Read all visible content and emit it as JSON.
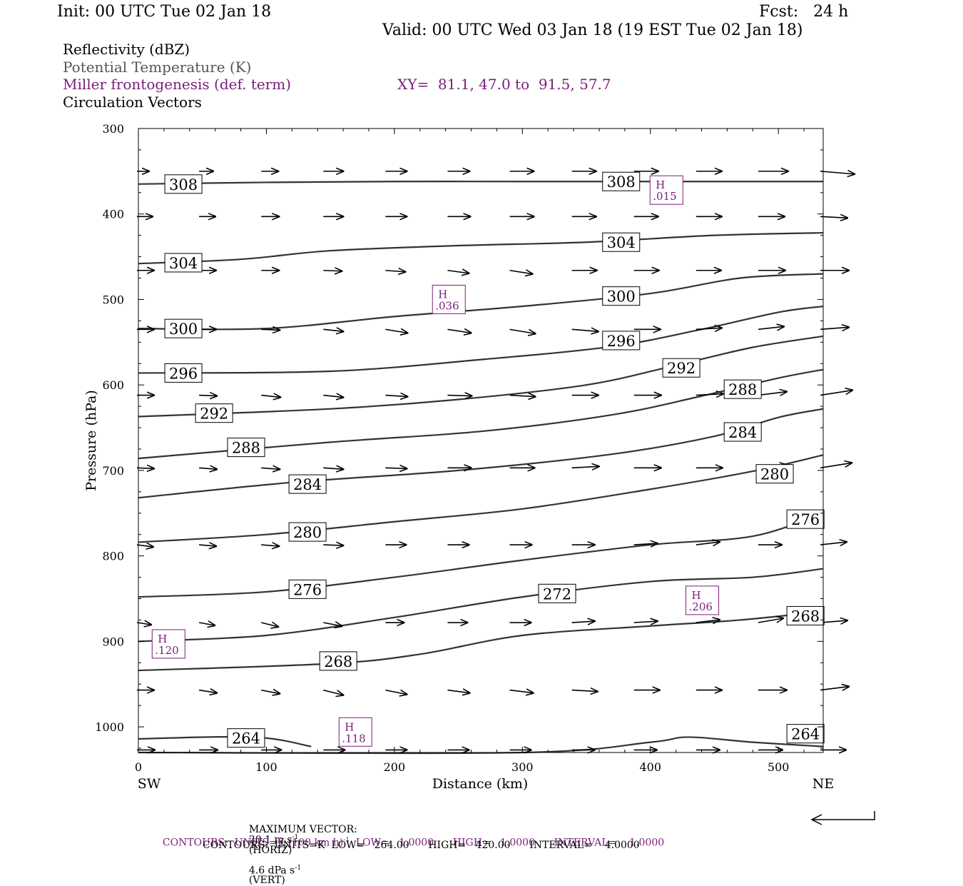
{
  "header": {
    "init": "Init: 00 UTC Tue 02 Jan 18",
    "fcst": "Fcst:   24 h",
    "valid": "Valid: 00 UTC Wed 03 Jan 18 (19 EST Tue 02 Jan 18)",
    "field1": "Reflectivity (dBZ)",
    "field2": "Potential Temperature (K)",
    "field3": "Miller frontogenesis (def. term)",
    "xy": "XY=  81.1, 47.0 to  91.5, 57.7",
    "field4": "Circulation Vectors"
  },
  "footer": {
    "max_vector_prefix": "MAXIMUM VECTOR:",
    "max_vector_horiz": "20.1 m s",
    "horiz_unit_sup": "-1",
    "horiz_suffix": "(HORIZ)",
    "max_vector_vert": "4.6 dPa s",
    "vert_unit_sup": "-1",
    "vert_suffix": "(VERT)",
    "contours1_a": "CONTOURS:  UNITS=K (100 km h)",
    "contours1_sup": "-1",
    "contours1_b": "  LOW=   1.0000      HIGH=   1.0000      INTERVAL=    1.0000",
    "contours2": "CONTOURS:  UNITS=K  LOW=   264.00      HIGH=   420.00      INTERVAL=    4.0000"
  },
  "colors": {
    "purple": "#7a1d7a",
    "line": "#333333"
  },
  "chart_data": {
    "type": "line",
    "title": "",
    "xlabel": "Distance (km)",
    "ylabel": "Pressure (hPa)",
    "x_end_labels": [
      "SW",
      "NE"
    ],
    "xlim": [
      0,
      535
    ],
    "ylim": [
      300,
      1030
    ],
    "y_inverted": true,
    "x_ticks": [
      0,
      100,
      200,
      300,
      400,
      500
    ],
    "y_ticks": [
      300,
      400,
      500,
      600,
      700,
      800,
      900,
      1000
    ],
    "isentropes": [
      {
        "theta": 308,
        "points": [
          [
            0,
            365
          ],
          [
            100,
            363
          ],
          [
            200,
            362
          ],
          [
            300,
            362
          ],
          [
            400,
            362
          ],
          [
            535,
            362
          ]
        ]
      },
      {
        "theta": 304,
        "points": [
          [
            0,
            458
          ],
          [
            80,
            453
          ],
          [
            150,
            443
          ],
          [
            250,
            437
          ],
          [
            350,
            433
          ],
          [
            450,
            425
          ],
          [
            535,
            422
          ]
        ]
      },
      {
        "theta": 300,
        "points": [
          [
            0,
            534
          ],
          [
            100,
            534
          ],
          [
            200,
            520
          ],
          [
            300,
            508
          ],
          [
            400,
            493
          ],
          [
            470,
            475
          ],
          [
            535,
            470
          ]
        ]
      },
      {
        "theta": 296,
        "points": [
          [
            0,
            586
          ],
          [
            150,
            584
          ],
          [
            270,
            570
          ],
          [
            370,
            555
          ],
          [
            440,
            535
          ],
          [
            500,
            515
          ],
          [
            535,
            508
          ]
        ]
      },
      {
        "theta": 292,
        "points": [
          [
            0,
            637
          ],
          [
            150,
            628
          ],
          [
            250,
            617
          ],
          [
            350,
            600
          ],
          [
            420,
            577
          ],
          [
            480,
            556
          ],
          [
            535,
            543
          ]
        ]
      },
      {
        "theta": 288,
        "points": [
          [
            0,
            686
          ],
          [
            150,
            667
          ],
          [
            270,
            654
          ],
          [
            370,
            635
          ],
          [
            440,
            613
          ],
          [
            500,
            592
          ],
          [
            535,
            582
          ]
        ]
      },
      {
        "theta": 284,
        "points": [
          [
            0,
            732
          ],
          [
            120,
            714
          ],
          [
            250,
            700
          ],
          [
            370,
            681
          ],
          [
            450,
            660
          ],
          [
            500,
            638
          ],
          [
            535,
            628
          ]
        ]
      },
      {
        "theta": 280,
        "points": [
          [
            0,
            784
          ],
          [
            100,
            775
          ],
          [
            200,
            760
          ],
          [
            300,
            745
          ],
          [
            400,
            722
          ],
          [
            480,
            701
          ],
          [
            535,
            682
          ]
        ]
      },
      {
        "theta": 276,
        "points": [
          [
            0,
            848
          ],
          [
            100,
            842
          ],
          [
            200,
            825
          ],
          [
            300,
            805
          ],
          [
            400,
            787
          ],
          [
            480,
            777
          ],
          [
            535,
            750
          ]
        ]
      },
      {
        "theta": 272,
        "points": [
          [
            0,
            900
          ],
          [
            100,
            893
          ],
          [
            200,
            872
          ],
          [
            300,
            848
          ],
          [
            400,
            830
          ],
          [
            480,
            825
          ],
          [
            535,
            815
          ]
        ]
      },
      {
        "theta": 268,
        "points": [
          [
            0,
            934
          ],
          [
            150,
            926
          ],
          [
            220,
            915
          ],
          [
            300,
            893
          ],
          [
            400,
            882
          ],
          [
            470,
            875
          ],
          [
            535,
            865
          ]
        ]
      },
      {
        "theta": 264,
        "points": [
          [
            0,
            1014
          ],
          [
            90,
            1012
          ],
          [
            135,
            1023
          ]
        ]
      },
      {
        "theta": 264,
        "points": [
          [
            0,
            1030
          ],
          [
            300,
            1030
          ],
          [
            400,
            1018
          ],
          [
            430,
            1012
          ],
          [
            480,
            1018
          ],
          [
            535,
            1023
          ]
        ]
      }
    ],
    "contour_labels": [
      {
        "text": "308",
        "x": 24,
        "p": 365
      },
      {
        "text": "308",
        "x": 366,
        "p": 362
      },
      {
        "text": "304",
        "x": 24,
        "p": 457
      },
      {
        "text": "304",
        "x": 366,
        "p": 433
      },
      {
        "text": "300",
        "x": 24,
        "p": 534
      },
      {
        "text": "300",
        "x": 366,
        "p": 496
      },
      {
        "text": "296",
        "x": 24,
        "p": 586
      },
      {
        "text": "296",
        "x": 366,
        "p": 548
      },
      {
        "text": "292",
        "x": 48,
        "p": 633
      },
      {
        "text": "292",
        "x": 413,
        "p": 580
      },
      {
        "text": "288",
        "x": 73,
        "p": 673
      },
      {
        "text": "288",
        "x": 461,
        "p": 605
      },
      {
        "text": "284",
        "x": 121,
        "p": 716
      },
      {
        "text": "284",
        "x": 461,
        "p": 655
      },
      {
        "text": "280",
        "x": 121,
        "p": 772
      },
      {
        "text": "280",
        "x": 486,
        "p": 704
      },
      {
        "text": "276",
        "x": 121,
        "p": 839
      },
      {
        "text": "276",
        "x": 510,
        "p": 757
      },
      {
        "text": "272",
        "x": 316,
        "p": 844
      },
      {
        "text": "268",
        "x": 145,
        "p": 923
      },
      {
        "text": "268",
        "x": 510,
        "p": 870
      },
      {
        "text": "264",
        "x": 73,
        "p": 1013
      },
      {
        "text": "264",
        "x": 510,
        "p": 1008
      }
    ],
    "frontogenesis_maxima": [
      {
        "label": "H",
        "value": ".015",
        "x": 412,
        "p": 372
      },
      {
        "text": "",
        "label": "H",
        "value": ".036",
        "x": 242,
        "p": 500
      },
      {
        "label": "H",
        "value": ".120",
        "x": 23,
        "p": 903
      },
      {
        "label": "H",
        "value": ".206",
        "x": 440,
        "p": 852
      },
      {
        "label": "H",
        "value": ".118",
        "x": 169,
        "p": 1006
      }
    ],
    "circulation_vectors": [
      {
        "p": 350,
        "row": [
          [
            0,
            17
          ],
          [
            49,
            20
          ],
          [
            98,
            24
          ],
          [
            147,
            28
          ],
          [
            196,
            30
          ],
          [
            245,
            31
          ],
          [
            294,
            34
          ],
          [
            343,
            34
          ],
          [
            392,
            34
          ],
          [
            441,
            36
          ],
          [
            490,
            42
          ],
          [
            539,
            48
          ]
        ],
        "dy": [
          0,
          0,
          0,
          0,
          0,
          0,
          0,
          0,
          0,
          0,
          0,
          4
        ]
      },
      {
        "p": 403,
        "row": [
          [
            0,
            22
          ],
          [
            49,
            23
          ],
          [
            98,
            25
          ],
          [
            147,
            28
          ],
          [
            196,
            30
          ],
          [
            245,
            32
          ],
          [
            294,
            34
          ],
          [
            343,
            34
          ],
          [
            392,
            34
          ],
          [
            441,
            36
          ],
          [
            490,
            37
          ],
          [
            539,
            38
          ]
        ],
        "dy": [
          0,
          0,
          0,
          0,
          0,
          0,
          0,
          0,
          0,
          0,
          0,
          2
        ]
      },
      {
        "p": 466,
        "row": [
          [
            0,
            24
          ],
          [
            49,
            24
          ],
          [
            98,
            25
          ],
          [
            147,
            26
          ],
          [
            196,
            28
          ],
          [
            245,
            30
          ],
          [
            294,
            32
          ],
          [
            343,
            35
          ],
          [
            392,
            35
          ],
          [
            441,
            35
          ],
          [
            490,
            38
          ],
          [
            539,
            40
          ]
        ],
        "dy": [
          0,
          0,
          0,
          1,
          2,
          4,
          5,
          0,
          0,
          0,
          0,
          0
        ]
      },
      {
        "p": 535,
        "row": [
          [
            0,
            24
          ],
          [
            49,
            24
          ],
          [
            98,
            26
          ],
          [
            147,
            28
          ],
          [
            196,
            31
          ],
          [
            245,
            33
          ],
          [
            294,
            36
          ],
          [
            343,
            37
          ],
          [
            392,
            37
          ],
          [
            441,
            36
          ],
          [
            490,
            36
          ],
          [
            539,
            40
          ]
        ],
        "dy": [
          0,
          0,
          1,
          3,
          5,
          5,
          6,
          3,
          0,
          -2,
          -4,
          -3
        ]
      },
      {
        "p": 612,
        "row": [
          [
            0,
            24
          ],
          [
            49,
            25
          ],
          [
            98,
            27
          ],
          [
            147,
            28
          ],
          [
            196,
            31
          ],
          [
            245,
            34
          ],
          [
            294,
            36
          ],
          [
            343,
            37
          ],
          [
            392,
            38
          ],
          [
            441,
            38
          ],
          [
            490,
            40
          ],
          [
            539,
            45
          ]
        ],
        "dy": [
          0,
          1,
          3,
          3,
          2,
          1,
          2,
          0,
          0,
          -2,
          -5,
          -7
        ]
      },
      {
        "p": 697,
        "row": [
          [
            0,
            24
          ],
          [
            49,
            25
          ],
          [
            98,
            26
          ],
          [
            147,
            28
          ],
          [
            196,
            30
          ],
          [
            245,
            33
          ],
          [
            294,
            35
          ],
          [
            343,
            38
          ],
          [
            392,
            38
          ],
          [
            441,
            37
          ],
          [
            490,
            40
          ],
          [
            539,
            44
          ]
        ],
        "dy": [
          1,
          2,
          2,
          2,
          1,
          0,
          0,
          -2,
          0,
          0,
          -4,
          -7
        ]
      },
      {
        "p": 787,
        "row": [
          [
            0,
            23
          ],
          [
            49,
            24
          ],
          [
            98,
            25
          ],
          [
            147,
            28
          ],
          [
            196,
            29
          ],
          [
            245,
            30
          ],
          [
            294,
            31
          ],
          [
            343,
            32
          ],
          [
            392,
            33
          ],
          [
            441,
            33
          ],
          [
            490,
            33
          ],
          [
            539,
            37
          ]
        ],
        "dy": [
          3,
          2,
          2,
          1,
          0,
          0,
          0,
          0,
          -2,
          -4,
          0,
          -4
        ]
      },
      {
        "p": 878,
        "row": [
          [
            0,
            20
          ],
          [
            49,
            22
          ],
          [
            98,
            24
          ],
          [
            147,
            26
          ],
          [
            196,
            26
          ],
          [
            245,
            28
          ],
          [
            294,
            30
          ],
          [
            343,
            32
          ],
          [
            392,
            33
          ],
          [
            441,
            33
          ],
          [
            490,
            35
          ],
          [
            539,
            38
          ]
        ],
        "dy": [
          3,
          4,
          6,
          5,
          0,
          0,
          0,
          -2,
          -2,
          -4,
          -6,
          -3
        ]
      },
      {
        "p": 957,
        "row": [
          [
            0,
            24
          ],
          [
            49,
            25
          ],
          [
            98,
            26
          ],
          [
            147,
            28
          ],
          [
            196,
            30
          ],
          [
            245,
            31
          ],
          [
            294,
            33
          ],
          [
            343,
            36
          ],
          [
            392,
            36
          ],
          [
            441,
            36
          ],
          [
            490,
            40
          ],
          [
            539,
            40
          ]
        ],
        "dy": [
          0,
          4,
          5,
          7,
          6,
          4,
          4,
          2,
          0,
          0,
          0,
          -5
        ]
      },
      {
        "p": 1027,
        "row": [
          [
            0,
            25
          ],
          [
            49,
            26
          ],
          [
            98,
            28
          ],
          [
            147,
            30
          ],
          [
            196,
            30
          ],
          [
            245,
            30
          ],
          [
            294,
            30
          ],
          [
            343,
            32
          ],
          [
            392,
            32
          ],
          [
            441,
            33
          ],
          [
            490,
            34
          ],
          [
            539,
            36
          ]
        ],
        "dy": [
          0,
          0,
          0,
          0,
          0,
          0,
          0,
          0,
          0,
          0,
          0,
          0
        ]
      }
    ]
  }
}
